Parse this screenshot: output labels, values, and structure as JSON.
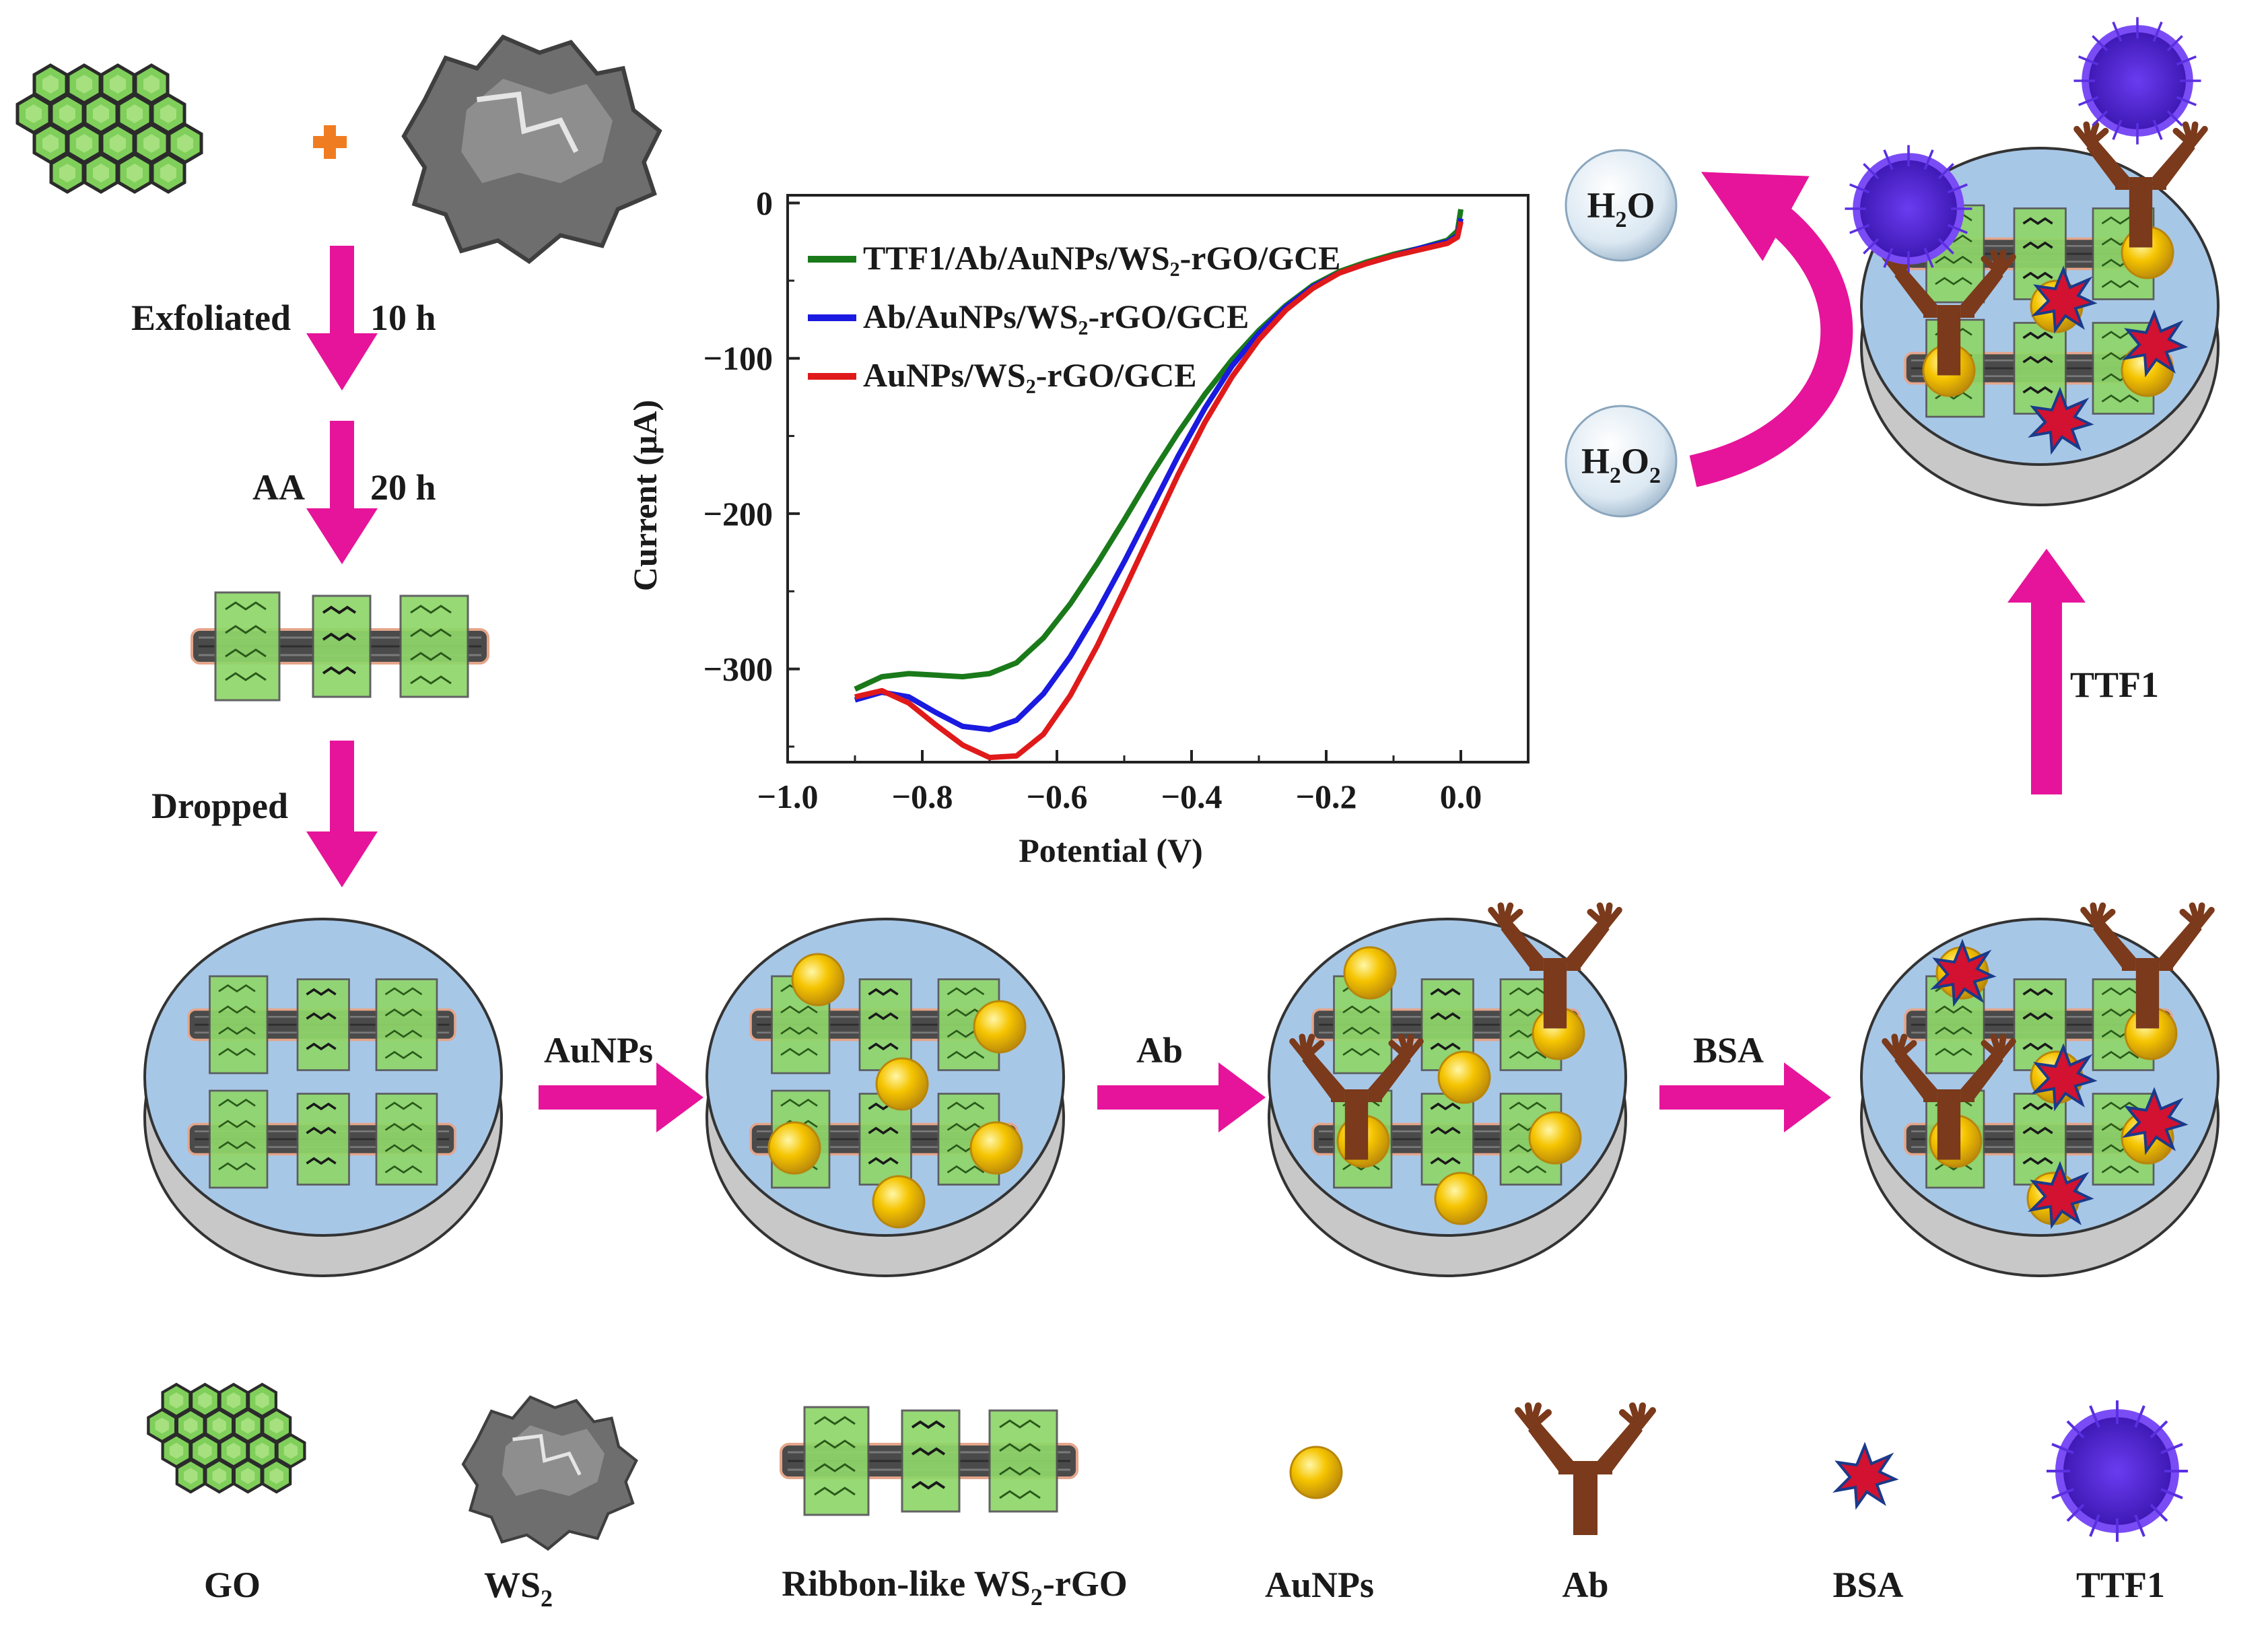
{
  "steps": {
    "exfoliated": "Exfoliated",
    "time1": "10 h",
    "aa": "AA",
    "time2": "20 h",
    "dropped": "Dropped",
    "aunps": "AuNPs",
    "ab": "Ab",
    "bsa": "BSA",
    "ttf1": "TTF1"
  },
  "reaction": {
    "product_main": "H",
    "product_sub": "2",
    "product_tail": "O",
    "reactant_main": "H",
    "reactant_sub1": "2",
    "reactant_mid": "O",
    "reactant_sub2": "2"
  },
  "legend": {
    "go": "GO",
    "ws2_main": "WS",
    "ws2_sub": "2",
    "ribbon_pre": "Ribbon-like WS",
    "ribbon_sub": "2",
    "ribbon_post": "-rGO",
    "aunps": "AuNPs",
    "ab": "Ab",
    "bsa": "BSA",
    "ttf1": "TTF1"
  },
  "colors": {
    "magenta": "#e6149a",
    "electrode_top": "#a7c7e7",
    "electrode_side": "#c8c8c8",
    "sheet_green": "#7fcf5a",
    "gold": "#f5c400",
    "antibody": "#7a3a1b",
    "bsa": "#d21230",
    "ttf1": "#5b2bd8"
  },
  "chart_data": {
    "type": "line",
    "title": "",
    "xlabel": "Potential (V)",
    "ylabel": "Current (μA)",
    "xlim": [
      -1.0,
      0.1
    ],
    "ylim": [
      -360,
      5
    ],
    "xticks": [
      -1.0,
      -0.8,
      -0.6,
      -0.4,
      -0.2,
      0.0
    ],
    "xtick_labels": [
      "−1.0",
      "−0.8",
      "−0.6",
      "−0.4",
      "−0.2",
      "0.0"
    ],
    "yticks": [
      0,
      -100,
      -200,
      -300
    ],
    "ytick_labels": [
      "0",
      "−100",
      "−200",
      "−300"
    ],
    "legend_position": "top-left",
    "series": [
      {
        "name": "TTF1/Ab/AuNPs/WS₂-rGO/GCE",
        "color": "#1a7a1a",
        "x": [
          -0.9,
          -0.86,
          -0.82,
          -0.78,
          -0.74,
          -0.7,
          -0.66,
          -0.62,
          -0.58,
          -0.54,
          -0.5,
          -0.46,
          -0.42,
          -0.38,
          -0.34,
          -0.3,
          -0.26,
          -0.22,
          -0.18,
          -0.14,
          -0.1,
          -0.06,
          -0.02,
          -0.005,
          0.0
        ],
        "y": [
          -313,
          -305,
          -303,
          -304,
          -305,
          -303,
          -296,
          -280,
          -258,
          -232,
          -204,
          -175,
          -148,
          -123,
          -101,
          -82,
          -66,
          -53,
          -44,
          -38,
          -33,
          -29,
          -24,
          -18,
          -4
        ]
      },
      {
        "name": "Ab/AuNPs/WS₂-rGO/GCE",
        "color": "#1a1ae0",
        "x": [
          -0.9,
          -0.86,
          -0.82,
          -0.78,
          -0.74,
          -0.7,
          -0.66,
          -0.62,
          -0.58,
          -0.54,
          -0.5,
          -0.46,
          -0.42,
          -0.38,
          -0.34,
          -0.3,
          -0.26,
          -0.22,
          -0.18,
          -0.14,
          -0.1,
          -0.06,
          -0.02,
          -0.005,
          0.0
        ],
        "y": [
          -320,
          -315,
          -318,
          -328,
          -337,
          -339,
          -333,
          -316,
          -292,
          -263,
          -231,
          -197,
          -163,
          -132,
          -105,
          -84,
          -67,
          -54,
          -45,
          -39,
          -34,
          -29,
          -25,
          -21,
          -10
        ]
      },
      {
        "name": "AuNPs/WS₂-rGO/GCE",
        "color": "#e01a1a",
        "x": [
          -0.9,
          -0.86,
          -0.82,
          -0.78,
          -0.74,
          -0.7,
          -0.66,
          -0.62,
          -0.58,
          -0.54,
          -0.5,
          -0.46,
          -0.42,
          -0.38,
          -0.34,
          -0.3,
          -0.26,
          -0.22,
          -0.18,
          -0.14,
          -0.1,
          -0.06,
          -0.02,
          -0.005,
          0.0
        ],
        "y": [
          -318,
          -314,
          -322,
          -336,
          -349,
          -357,
          -356,
          -342,
          -317,
          -285,
          -249,
          -212,
          -175,
          -141,
          -112,
          -88,
          -69,
          -55,
          -45,
          -39,
          -34,
          -30,
          -26,
          -22,
          -12
        ]
      }
    ]
  }
}
